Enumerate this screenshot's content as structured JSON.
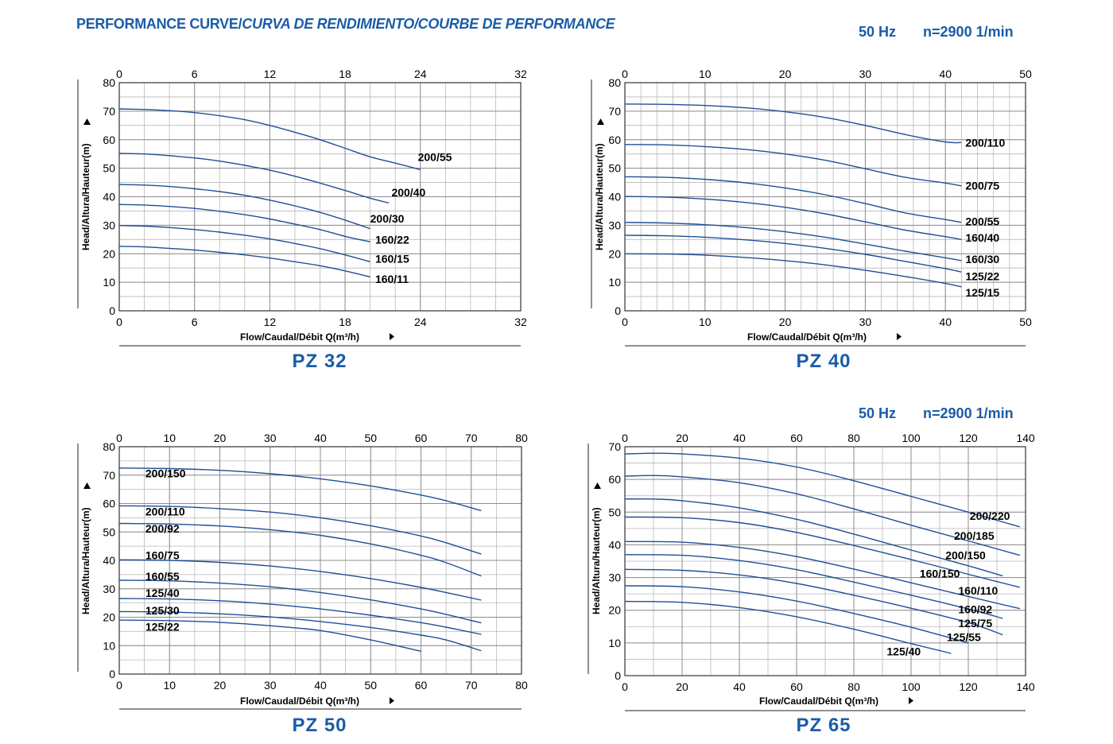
{
  "header": {
    "title_main": "PERFORMANCE CURVE/",
    "title_italic": "CURVA DE RENDIMIENTO/COURBE DE PERFORMANCE",
    "frequency": "50 Hz",
    "speed": "n=2900 1/min"
  },
  "chart_data": [
    {
      "type": "line",
      "model": "PZ 32",
      "xlabel": "Flow/Caudal/Débit Q(m³/h)",
      "ylabel": "Head/Altura/Hauteur(m)",
      "xlim": [
        0,
        32
      ],
      "ylim": [
        0,
        80
      ],
      "xticks": [
        0,
        6,
        12,
        18,
        24,
        32
      ],
      "yticks": [
        0,
        10,
        20,
        30,
        40,
        50,
        60,
        70,
        80
      ],
      "grid": true,
      "series": [
        {
          "name": "200/55",
          "x": [
            0,
            2,
            4,
            6,
            8,
            10,
            12,
            14,
            16,
            18,
            20,
            22,
            24
          ],
          "y": [
            70.8,
            70.6,
            70.2,
            69.5,
            68.4,
            67.0,
            65.0,
            62.6,
            60.0,
            57.0,
            54.0,
            51.8,
            49.5
          ]
        },
        {
          "name": "200/40",
          "x": [
            0,
            2,
            4,
            6,
            8,
            10,
            12,
            14,
            16,
            18,
            20,
            21.5
          ],
          "y": [
            55.2,
            55.0,
            54.4,
            53.6,
            52.5,
            51.0,
            49.3,
            47.2,
            44.8,
            42.2,
            39.5,
            37.8
          ]
        },
        {
          "name": "200/30",
          "x": [
            0,
            2,
            4,
            6,
            8,
            10,
            12,
            14,
            16,
            18,
            20
          ],
          "y": [
            44.3,
            44.1,
            43.6,
            42.8,
            41.8,
            40.5,
            38.8,
            36.8,
            34.5,
            31.8,
            28.8
          ]
        },
        {
          "name": "160/22",
          "x": [
            0,
            2,
            4,
            6,
            8,
            10,
            12,
            14,
            16,
            18,
            20
          ],
          "y": [
            37.3,
            37.1,
            36.6,
            35.9,
            34.9,
            33.7,
            32.2,
            30.4,
            28.5,
            26.1,
            24.2
          ]
        },
        {
          "name": "160/15",
          "x": [
            0,
            2,
            4,
            6,
            8,
            10,
            12,
            14,
            16,
            18,
            20
          ],
          "y": [
            29.9,
            29.7,
            29.2,
            28.5,
            27.6,
            26.5,
            25.2,
            23.6,
            21.8,
            19.6,
            17.2
          ]
        },
        {
          "name": "160/11",
          "x": [
            0,
            2,
            4,
            6,
            8,
            10,
            12,
            14,
            16,
            18,
            20
          ],
          "y": [
            22.6,
            22.4,
            21.9,
            21.3,
            20.5,
            19.6,
            18.5,
            17.2,
            15.8,
            14.0,
            11.9
          ]
        }
      ],
      "labels": [
        {
          "text": "200/55",
          "x": 23.8,
          "y": 52.5
        },
        {
          "text": "200/40",
          "x": 21.7,
          "y": 40.2
        },
        {
          "text": "200/30",
          "x": 20.0,
          "y": 31.0
        },
        {
          "text": "160/22",
          "x": 20.4,
          "y": 23.5
        },
        {
          "text": "160/15",
          "x": 20.4,
          "y": 16.8
        },
        {
          "text": "160/11",
          "x": 20.4,
          "y": 9.8
        }
      ]
    },
    {
      "type": "line",
      "model": "PZ 40",
      "xlabel": "Flow/Caudal/Débit Q(m³/h)",
      "ylabel": "Head/Altura/Hauteur(m)",
      "xlim": [
        0,
        50
      ],
      "ylim": [
        0,
        80
      ],
      "xticks": [
        0,
        10,
        20,
        30,
        40,
        50
      ],
      "yticks": [
        0,
        10,
        20,
        30,
        40,
        50,
        60,
        70,
        80
      ],
      "grid": true,
      "series": [
        {
          "name": "200/110",
          "x": [
            0,
            5,
            10,
            15,
            20,
            25,
            30,
            35,
            40,
            42
          ],
          "y": [
            72.5,
            72.4,
            72.0,
            71.2,
            69.8,
            67.8,
            65.0,
            61.8,
            59.2,
            59.0
          ]
        },
        {
          "name": "200/75",
          "x": [
            0,
            5,
            10,
            15,
            20,
            25,
            30,
            35,
            40,
            42
          ],
          "y": [
            58.3,
            58.2,
            57.6,
            56.6,
            55.0,
            52.8,
            49.8,
            46.8,
            44.8,
            43.8
          ]
        },
        {
          "name": "200/55",
          "x": [
            0,
            5,
            10,
            15,
            20,
            25,
            30,
            35,
            40,
            42
          ],
          "y": [
            47.0,
            46.8,
            46.1,
            44.9,
            43.1,
            40.7,
            37.6,
            34.3,
            32.0,
            31.0
          ]
        },
        {
          "name": "160/40",
          "x": [
            0,
            5,
            10,
            15,
            20,
            25,
            30,
            35,
            40,
            42
          ],
          "y": [
            40.1,
            39.9,
            39.2,
            38.0,
            36.3,
            34.0,
            31.2,
            28.3,
            26.0,
            25.0
          ]
        },
        {
          "name": "160/30",
          "x": [
            0,
            5,
            10,
            15,
            20,
            25,
            30,
            35,
            40,
            42
          ],
          "y": [
            31.0,
            30.8,
            30.2,
            29.2,
            27.7,
            25.8,
            23.4,
            20.9,
            18.6,
            17.6
          ]
        },
        {
          "name": "125/22",
          "x": [
            0,
            5,
            10,
            15,
            20,
            25,
            30,
            35,
            40,
            42
          ],
          "y": [
            26.5,
            26.3,
            25.8,
            24.9,
            23.6,
            21.9,
            19.8,
            17.3,
            14.8,
            13.6
          ]
        },
        {
          "name": "125/15",
          "x": [
            0,
            5,
            10,
            15,
            20,
            25,
            30,
            35,
            40,
            42
          ],
          "y": [
            20.0,
            19.9,
            19.5,
            18.7,
            17.6,
            16.1,
            14.2,
            12.0,
            9.6,
            8.4
          ]
        }
      ],
      "labels": [
        {
          "text": "200/110",
          "x": 42.5,
          "y": 57.5
        },
        {
          "text": "200/75",
          "x": 42.5,
          "y": 42.5
        },
        {
          "text": "200/55",
          "x": 42.5,
          "y": 30.0
        },
        {
          "text": "160/40",
          "x": 42.5,
          "y": 24.2
        },
        {
          "text": "160/30",
          "x": 42.5,
          "y": 16.7
        },
        {
          "text": "125/22",
          "x": 42.5,
          "y": 10.8
        },
        {
          "text": "125/15",
          "x": 42.5,
          "y": 5.0
        }
      ]
    },
    {
      "type": "line",
      "model": "PZ 50",
      "xlabel": "Flow/Caudal/Débit Q(m³/h)",
      "ylabel": "Head/Altura/Hauteur(m)",
      "xlim": [
        0,
        80
      ],
      "ylim": [
        0,
        80
      ],
      "xticks": [
        0,
        10,
        20,
        30,
        40,
        50,
        60,
        70,
        80
      ],
      "yticks": [
        0,
        10,
        20,
        30,
        40,
        50,
        60,
        70,
        80
      ],
      "grid": true,
      "series": [
        {
          "name": "200/150",
          "x": [
            0,
            10,
            20,
            30,
            40,
            50,
            60,
            65,
            72
          ],
          "y": [
            72.5,
            72.3,
            71.7,
            70.5,
            68.7,
            66.2,
            63.0,
            61.0,
            57.5
          ]
        },
        {
          "name": "200/110",
          "x": [
            0,
            10,
            20,
            30,
            40,
            50,
            60,
            65,
            72
          ],
          "y": [
            59.2,
            59.0,
            58.2,
            57.0,
            55.0,
            52.2,
            48.6,
            46.2,
            42.2
          ]
        },
        {
          "name": "200/92",
          "x": [
            0,
            10,
            20,
            30,
            40,
            50,
            60,
            65,
            72
          ],
          "y": [
            53.0,
            52.8,
            52.1,
            50.8,
            48.8,
            45.8,
            41.8,
            39.2,
            34.5
          ]
        },
        {
          "name": "160/75",
          "x": [
            0,
            10,
            20,
            30,
            40,
            50,
            60,
            65,
            72
          ],
          "y": [
            40.2,
            40.0,
            39.3,
            38.0,
            36.1,
            33.6,
            30.5,
            28.7,
            26.0
          ]
        },
        {
          "name": "160/55",
          "x": [
            0,
            10,
            20,
            30,
            40,
            50,
            60,
            65,
            72
          ],
          "y": [
            33.0,
            32.8,
            32.0,
            30.7,
            28.7,
            26.1,
            22.9,
            21.0,
            18.0
          ]
        },
        {
          "name": "125/40",
          "x": [
            0,
            10,
            20,
            30,
            40,
            50,
            60,
            65,
            72
          ],
          "y": [
            26.6,
            26.4,
            25.8,
            24.6,
            22.9,
            20.7,
            18.1,
            16.5,
            14.0
          ]
        },
        {
          "name": "125/30",
          "x": [
            0,
            10,
            20,
            30,
            40,
            50,
            60,
            65,
            72
          ],
          "y": [
            22.0,
            21.8,
            21.2,
            20.1,
            18.5,
            16.4,
            13.7,
            12.0,
            8.2
          ]
        },
        {
          "name": "125/22",
          "x": [
            0,
            10,
            20,
            30,
            40,
            50,
            60
          ],
          "y": [
            19.0,
            18.8,
            18.2,
            17.0,
            15.3,
            12.0,
            8.0
          ]
        }
      ],
      "labels": [
        {
          "text": "200/150",
          "x": 5.2,
          "y": 69.2
        },
        {
          "text": "200/110",
          "x": 5.2,
          "y": 55.8
        },
        {
          "text": "200/92",
          "x": 5.2,
          "y": 49.8
        },
        {
          "text": "160/75",
          "x": 5.2,
          "y": 40.4
        },
        {
          "text": "160/55",
          "x": 5.2,
          "y": 33.0
        },
        {
          "text": "125/40",
          "x": 5.2,
          "y": 27.2
        },
        {
          "text": "125/30",
          "x": 5.2,
          "y": 21.0
        },
        {
          "text": "125/22",
          "x": 5.2,
          "y": 15.2
        }
      ]
    },
    {
      "type": "line",
      "model": "PZ 65",
      "xlabel": "Flow/Caudal/Débit Q(m³/h)",
      "ylabel": "Head/Altura/Hauteur(m)",
      "xlim": [
        0,
        140
      ],
      "ylim": [
        0,
        70
      ],
      "xticks": [
        0,
        20,
        40,
        60,
        80,
        100,
        120,
        140
      ],
      "yticks": [
        0,
        10,
        20,
        30,
        40,
        50,
        60,
        70
      ],
      "grid": true,
      "series": [
        {
          "name": "200/220",
          "x": [
            0,
            10,
            20,
            40,
            60,
            80,
            100,
            120,
            138
          ],
          "y": [
            67.8,
            68.0,
            67.8,
            66.5,
            63.8,
            59.6,
            54.8,
            50.0,
            45.5
          ]
        },
        {
          "name": "200/185",
          "x": [
            0,
            10,
            20,
            40,
            60,
            80,
            100,
            120,
            138
          ],
          "y": [
            61.0,
            61.2,
            60.8,
            59.0,
            55.6,
            51.0,
            46.0,
            41.2,
            36.8
          ]
        },
        {
          "name": "200/150",
          "x": [
            0,
            10,
            20,
            40,
            60,
            80,
            100,
            120,
            132
          ],
          "y": [
            54.0,
            54.0,
            53.5,
            51.3,
            47.8,
            43.3,
            38.4,
            33.6,
            30.5
          ]
        },
        {
          "name": "160/150",
          "x": [
            0,
            20,
            40,
            60,
            80,
            100,
            120,
            138
          ],
          "y": [
            48.5,
            48.3,
            46.8,
            43.8,
            39.8,
            35.5,
            31.0,
            27.0
          ]
        },
        {
          "name": "160/110",
          "x": [
            0,
            20,
            40,
            60,
            80,
            100,
            120,
            138
          ],
          "y": [
            41.0,
            40.8,
            39.2,
            36.4,
            32.6,
            28.4,
            24.2,
            20.5
          ]
        },
        {
          "name": "160/92",
          "x": [
            0,
            20,
            40,
            60,
            80,
            100,
            120,
            132
          ],
          "y": [
            37.0,
            36.8,
            35.2,
            32.4,
            28.6,
            24.6,
            20.4,
            17.5
          ]
        },
        {
          "name": "125/75",
          "x": [
            0,
            20,
            40,
            60,
            80,
            100,
            120,
            132
          ],
          "y": [
            32.5,
            32.2,
            30.8,
            28.2,
            24.6,
            20.6,
            16.2,
            12.5
          ]
        },
        {
          "name": "125/55",
          "x": [
            0,
            20,
            40,
            60,
            80,
            100,
            120
          ],
          "y": [
            27.5,
            27.2,
            25.6,
            22.8,
            19.0,
            14.8,
            10.0
          ]
        },
        {
          "name": "125/40",
          "x": [
            0,
            20,
            40,
            60,
            80,
            100,
            114
          ],
          "y": [
            22.7,
            22.4,
            20.8,
            18.0,
            14.2,
            9.8,
            6.8
          ]
        }
      ],
      "labels": [
        {
          "text": "200/220",
          "x": 120.5,
          "y": 47.6
        },
        {
          "text": "200/185",
          "x": 115.0,
          "y": 41.6
        },
        {
          "text": "200/150",
          "x": 112.0,
          "y": 35.6
        },
        {
          "text": "160/150",
          "x": 103.0,
          "y": 30.0
        },
        {
          "text": "160/110",
          "x": 116.5,
          "y": 24.8
        },
        {
          "text": "160/92",
          "x": 116.5,
          "y": 19.1
        },
        {
          "text": "125/75",
          "x": 116.5,
          "y": 14.8
        },
        {
          "text": "125/55",
          "x": 112.5,
          "y": 10.6
        },
        {
          "text": "125/40",
          "x": 91.5,
          "y": 6.2
        }
      ]
    }
  ]
}
